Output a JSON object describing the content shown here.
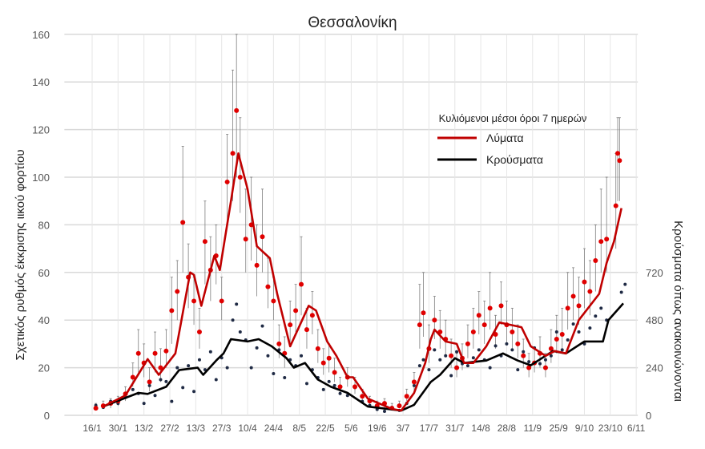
{
  "chart_data": {
    "type": "line",
    "title": "Θεσσαλονίκη",
    "ylabel": "Σχετικός ρυθμός έκκρισης ιικού φορτίου",
    "y2label": "Κρούσματα όπως ανακοινώνονται",
    "ylim": [
      0,
      160
    ],
    "yticks": [
      0,
      20,
      40,
      60,
      80,
      100,
      120,
      140,
      160
    ],
    "y2lim": [
      0,
      1920
    ],
    "y2ticks": [
      0,
      240,
      480,
      720
    ],
    "xlim": [
      "1/1",
      "6/11"
    ],
    "xticks": [
      "16/1",
      "30/1",
      "13/2",
      "27/2",
      "13/3",
      "27/3",
      "10/4",
      "24/4",
      "8/5",
      "22/5",
      "5/6",
      "19/6",
      "3/7",
      "17/7",
      "31/7",
      "14/8",
      "28/8",
      "11/9",
      "25/9",
      "9/10",
      "23/10",
      "6/11"
    ],
    "grid": true,
    "legend": {
      "title": "Κυλιόμενοι μέσοι όροι 7 ημερών",
      "placement": "top-right"
    },
    "colors": {
      "wastewater": "#c00000",
      "cases": "#000000",
      "points_wastewater": "#e00000",
      "points_cases": "#1f2a44",
      "errorbars": "#7f7f7f"
    },
    "series": [
      {
        "name": "Λύματα",
        "axis": "left",
        "kind": "7-day moving average",
        "points": [
          [
            "22/1",
            3.7
          ],
          [
            "3/2",
            8.4
          ],
          [
            "15/2",
            23.6
          ],
          [
            "21/2",
            17
          ],
          [
            "2/3",
            26
          ],
          [
            "10/3",
            60
          ],
          [
            "12/3",
            59
          ],
          [
            "16/3",
            46
          ],
          [
            "23/3",
            67
          ],
          [
            "26/3",
            61
          ],
          [
            "1/4",
            90
          ],
          [
            "5/4",
            110
          ],
          [
            "10/4",
            95
          ],
          [
            "15/4",
            71
          ],
          [
            "22/4",
            66
          ],
          [
            "26/4",
            51
          ],
          [
            "3/5",
            29
          ],
          [
            "13/5",
            46
          ],
          [
            "17/5",
            44
          ],
          [
            "23/5",
            31
          ],
          [
            "28/5",
            25
          ],
          [
            "3/6",
            16
          ],
          [
            "6/6",
            16
          ],
          [
            "14/6",
            7
          ],
          [
            "27/6",
            2.7
          ],
          [
            "2/7",
            2
          ],
          [
            "9/7",
            9.4
          ],
          [
            "15/7",
            22
          ],
          [
            "18/7",
            32
          ],
          [
            "20/7",
            36
          ],
          [
            "26/7",
            31
          ],
          [
            "1/8",
            30
          ],
          [
            "5/8",
            22
          ],
          [
            "10/8",
            22
          ],
          [
            "17/8",
            29
          ],
          [
            "24/8",
            39
          ],
          [
            "5/9",
            37
          ],
          [
            "10/9",
            29
          ],
          [
            "18/9",
            25
          ],
          [
            "23/9",
            27
          ],
          [
            "29/9",
            26
          ],
          [
            "6/10",
            40
          ],
          [
            "17/10",
            51
          ],
          [
            "21/10",
            64
          ],
          [
            "25/10",
            73
          ],
          [
            "29/10",
            87
          ]
        ]
      },
      {
        "name": "Κρούσματα",
        "axis": "right",
        "kind": "7-day moving average",
        "points": [
          [
            "23/1",
            48
          ],
          [
            "10/2",
            113
          ],
          [
            "15/2",
            108
          ],
          [
            "25/2",
            144
          ],
          [
            "4/3",
            228
          ],
          [
            "14/3",
            240
          ],
          [
            "17/3",
            204
          ],
          [
            "24/3",
            276
          ],
          [
            "28/3",
            312
          ],
          [
            "1/4",
            384
          ],
          [
            "10/4",
            372
          ],
          [
            "16/4",
            384
          ],
          [
            "23/4",
            348
          ],
          [
            "1/5",
            288
          ],
          [
            "5/5",
            240
          ],
          [
            "11/5",
            264
          ],
          [
            "18/5",
            180
          ],
          [
            "25/5",
            144
          ],
          [
            "3/6",
            113
          ],
          [
            "14/6",
            44
          ],
          [
            "2/7",
            24
          ],
          [
            "9/7",
            53
          ],
          [
            "18/7",
            168
          ],
          [
            "23/7",
            204
          ],
          [
            "31/7",
            288
          ],
          [
            "5/8",
            264
          ],
          [
            "17/8",
            276
          ],
          [
            "26/8",
            312
          ],
          [
            "3/9",
            276
          ],
          [
            "10/9",
            252
          ],
          [
            "22/9",
            324
          ],
          [
            "29/9",
            312
          ],
          [
            "9/10",
            372
          ],
          [
            "19/10",
            372
          ],
          [
            "22/10",
            480
          ],
          [
            "30/10",
            564
          ]
        ]
      }
    ],
    "wastewater_daily": [
      [
        "18/1",
        3,
        2,
        5
      ],
      [
        "22/1",
        4,
        3,
        6
      ],
      [
        "26/1",
        5,
        3,
        7
      ],
      [
        "30/1",
        6,
        4,
        8
      ],
      [
        "3/2",
        9,
        6,
        12
      ],
      [
        "7/2",
        16,
        12,
        22
      ],
      [
        "10/2",
        26,
        18,
        36
      ],
      [
        "13/2",
        22,
        16,
        30
      ],
      [
        "16/2",
        14,
        10,
        20
      ],
      [
        "19/2",
        26,
        18,
        35
      ],
      [
        "22/2",
        20,
        14,
        28
      ],
      [
        "25/2",
        27,
        20,
        36
      ],
      [
        "28/2",
        44,
        30,
        58
      ],
      [
        "3/3",
        52,
        40,
        65
      ],
      [
        "6/3",
        81,
        60,
        113
      ],
      [
        "9/3",
        58,
        45,
        72
      ],
      [
        "12/3",
        48,
        38,
        58
      ],
      [
        "15/3",
        35,
        28,
        45
      ],
      [
        "18/3",
        73,
        55,
        90
      ],
      [
        "21/3",
        61,
        48,
        75
      ],
      [
        "24/3",
        67,
        55,
        80
      ],
      [
        "27/3",
        48,
        40,
        58
      ],
      [
        "30/3",
        98,
        80,
        118
      ],
      [
        "2/4",
        110,
        90,
        145
      ],
      [
        "4/4",
        128,
        100,
        160
      ],
      [
        "6/4",
        100,
        85,
        125
      ],
      [
        "9/4",
        74,
        60,
        95
      ],
      [
        "12/4",
        80,
        65,
        100
      ],
      [
        "15/4",
        63,
        50,
        80
      ],
      [
        "18/4",
        75,
        60,
        95
      ],
      [
        "21/4",
        54,
        45,
        66
      ],
      [
        "24/4",
        48,
        40,
        58
      ],
      [
        "27/4",
        30,
        24,
        38
      ],
      [
        "30/4",
        26,
        20,
        33
      ],
      [
        "3/5",
        38,
        30,
        48
      ],
      [
        "6/5",
        44,
        35,
        55
      ],
      [
        "9/5",
        55,
        42,
        75
      ],
      [
        "12/5",
        36,
        28,
        45
      ],
      [
        "15/5",
        42,
        34,
        52
      ],
      [
        "18/5",
        28,
        22,
        36
      ],
      [
        "21/5",
        22,
        17,
        28
      ],
      [
        "24/5",
        24,
        18,
        30
      ],
      [
        "27/5",
        18,
        14,
        24
      ],
      [
        "30/5",
        12,
        9,
        16
      ],
      [
        "3/6",
        16,
        12,
        20
      ],
      [
        "7/6",
        12,
        9,
        16
      ],
      [
        "11/6",
        8,
        6,
        11
      ],
      [
        "15/6",
        6,
        4,
        8
      ],
      [
        "19/6",
        4,
        3,
        6
      ],
      [
        "23/6",
        5,
        3,
        7
      ],
      [
        "27/6",
        3,
        2,
        5
      ],
      [
        "1/7",
        4,
        3,
        6
      ],
      [
        "5/7",
        8,
        6,
        11
      ],
      [
        "9/7",
        14,
        10,
        18
      ],
      [
        "12/7",
        38,
        28,
        55
      ],
      [
        "14/7",
        43,
        33,
        60
      ],
      [
        "17/7",
        28,
        22,
        38
      ],
      [
        "20/7",
        40,
        32,
        50
      ],
      [
        "23/7",
        35,
        28,
        44
      ],
      [
        "26/7",
        32,
        25,
        40
      ],
      [
        "29/7",
        25,
        20,
        32
      ],
      [
        "1/8",
        20,
        16,
        26
      ],
      [
        "4/8",
        24,
        19,
        30
      ],
      [
        "7/8",
        30,
        24,
        38
      ],
      [
        "10/8",
        35,
        28,
        45
      ],
      [
        "13/8",
        42,
        34,
        52
      ],
      [
        "16/8",
        38,
        30,
        48
      ],
      [
        "19/8",
        45,
        36,
        60
      ],
      [
        "22/8",
        34,
        28,
        42
      ],
      [
        "25/8",
        46,
        38,
        56
      ],
      [
        "28/8",
        38,
        30,
        48
      ],
      [
        "31/8",
        35,
        28,
        45
      ],
      [
        "3/9",
        30,
        24,
        38
      ],
      [
        "6/9",
        25,
        20,
        32
      ],
      [
        "9/9",
        20,
        16,
        26
      ],
      [
        "12/9",
        22,
        18,
        28
      ],
      [
        "15/9",
        26,
        20,
        33
      ],
      [
        "18/9",
        20,
        16,
        26
      ],
      [
        "21/9",
        28,
        22,
        36
      ],
      [
        "24/9",
        32,
        26,
        42
      ],
      [
        "27/9",
        34,
        26,
        45
      ],
      [
        "30/9",
        45,
        36,
        60
      ],
      [
        "3/10",
        50,
        40,
        62
      ],
      [
        "6/10",
        46,
        38,
        58
      ],
      [
        "9/10",
        56,
        45,
        70
      ],
      [
        "12/10",
        52,
        42,
        65
      ],
      [
        "15/10",
        65,
        52,
        80
      ],
      [
        "18/10",
        73,
        60,
        95
      ],
      [
        "21/10",
        74,
        60,
        100
      ],
      [
        "26/10",
        88,
        70,
        110
      ],
      [
        "27/10",
        110,
        90,
        125
      ],
      [
        "28/10",
        107,
        90,
        125
      ]
    ],
    "cases_daily": [
      [
        "18/1",
        50
      ],
      [
        "22/1",
        40
      ],
      [
        "26/1",
        70
      ],
      [
        "30/1",
        60
      ],
      [
        "3/2",
        90
      ],
      [
        "7/2",
        130
      ],
      [
        "10/2",
        110
      ],
      [
        "13/2",
        60
      ],
      [
        "16/2",
        150
      ],
      [
        "19/2",
        100
      ],
      [
        "22/2",
        180
      ],
      [
        "25/2",
        170
      ],
      [
        "28/2",
        70
      ],
      [
        "3/3",
        240
      ],
      [
        "6/3",
        140
      ],
      [
        "9/3",
        250
      ],
      [
        "12/3",
        120
      ],
      [
        "15/3",
        280
      ],
      [
        "18/3",
        230
      ],
      [
        "21/3",
        320
      ],
      [
        "24/3",
        180
      ],
      [
        "27/3",
        290
      ],
      [
        "30/3",
        240
      ],
      [
        "2/4",
        480
      ],
      [
        "4/4",
        560
      ],
      [
        "6/4",
        420
      ],
      [
        "9/4",
        380
      ],
      [
        "12/4",
        240
      ],
      [
        "15/4",
        340
      ],
      [
        "18/4",
        450
      ],
      [
        "21/4",
        300
      ],
      [
        "24/4",
        210
      ],
      [
        "27/4",
        330
      ],
      [
        "30/4",
        190
      ],
      [
        "3/5",
        280
      ],
      [
        "6/5",
        250
      ],
      [
        "9/5",
        300
      ],
      [
        "12/5",
        160
      ],
      [
        "15/5",
        230
      ],
      [
        "18/5",
        190
      ],
      [
        "21/5",
        130
      ],
      [
        "24/5",
        170
      ],
      [
        "27/5",
        150
      ],
      [
        "30/5",
        110
      ],
      [
        "3/6",
        100
      ],
      [
        "7/6",
        140
      ],
      [
        "11/6",
        70
      ],
      [
        "15/6",
        50
      ],
      [
        "19/6",
        30
      ],
      [
        "23/6",
        20
      ],
      [
        "27/6",
        40
      ],
      [
        "1/7",
        25
      ],
      [
        "5/7",
        60
      ],
      [
        "9/7",
        150
      ],
      [
        "12/7",
        250
      ],
      [
        "14/7",
        280
      ],
      [
        "17/7",
        230
      ],
      [
        "20/7",
        330
      ],
      [
        "23/7",
        280
      ],
      [
        "26/7",
        300
      ],
      [
        "29/7",
        200
      ],
      [
        "1/8",
        320
      ],
      [
        "4/8",
        260
      ],
      [
        "7/8",
        250
      ],
      [
        "10/8",
        290
      ],
      [
        "13/8",
        330
      ],
      [
        "16/8",
        280
      ],
      [
        "19/8",
        240
      ],
      [
        "22/8",
        350
      ],
      [
        "25/8",
        300
      ],
      [
        "28/8",
        360
      ],
      [
        "31/8",
        330
      ],
      [
        "3/9",
        230
      ],
      [
        "6/9",
        320
      ],
      [
        "9/9",
        270
      ],
      [
        "12/9",
        340
      ],
      [
        "15/9",
        260
      ],
      [
        "18/9",
        280
      ],
      [
        "21/9",
        300
      ],
      [
        "24/9",
        420
      ],
      [
        "27/9",
        330
      ],
      [
        "30/9",
        380
      ],
      [
        "3/10",
        460
      ],
      [
        "6/10",
        420
      ],
      [
        "9/10",
        360
      ],
      [
        "12/10",
        440
      ],
      [
        "15/10",
        500
      ],
      [
        "18/10",
        540
      ],
      [
        "21/10",
        480
      ],
      [
        "29/10",
        620
      ],
      [
        "31/10",
        660
      ]
    ]
  }
}
